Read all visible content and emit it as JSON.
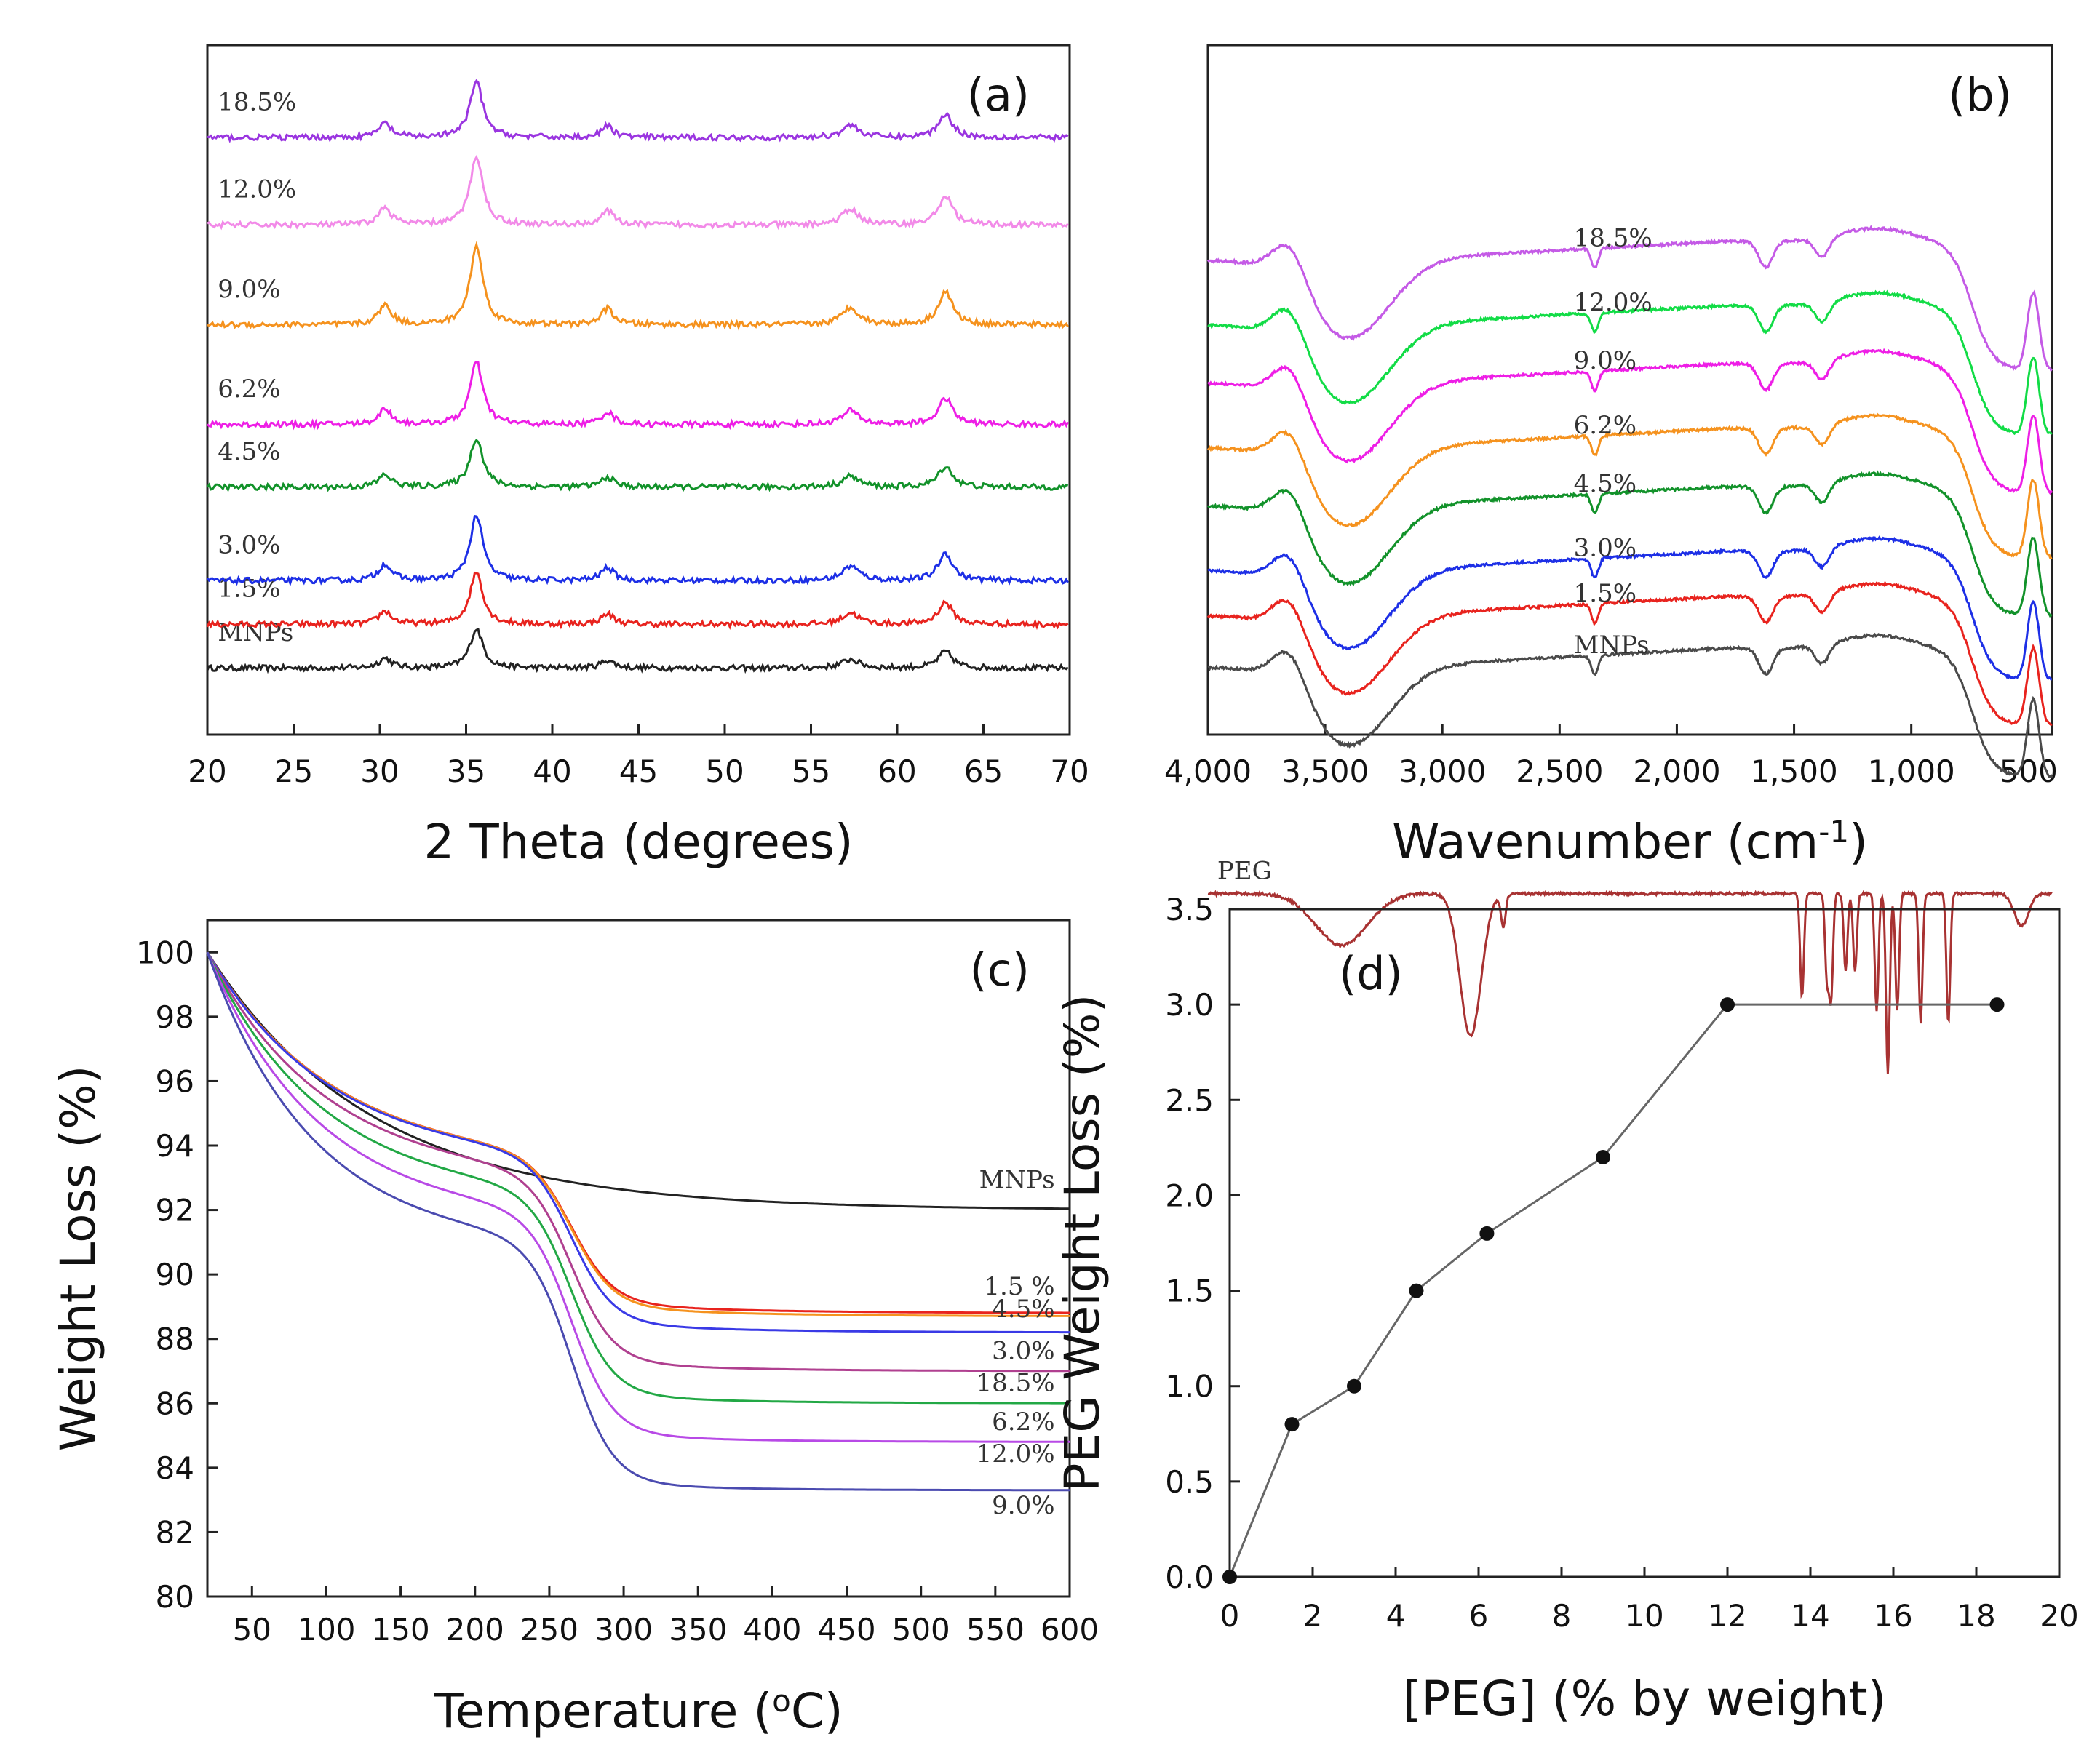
{
  "chart_data": [
    {
      "panel": "(a)",
      "type": "line",
      "xlabel": "2 Theta (degrees)",
      "ylabel": "",
      "xlim": [
        20,
        70
      ],
      "xticks": [
        "20",
        "25",
        "30",
        "35",
        "40",
        "45",
        "50",
        "55",
        "60",
        "65",
        "70"
      ],
      "peaks_2theta": [
        30.3,
        35.6,
        43.2,
        57.3,
        62.8
      ],
      "series": [
        {
          "name": "MNPs",
          "color": "#222222",
          "baseline": 0.06,
          "scale": 0.6
        },
        {
          "name": "1.5%",
          "color": "#e8231e",
          "baseline": 0.13,
          "scale": 0.8
        },
        {
          "name": "3.0%",
          "color": "#1d2fe6",
          "baseline": 0.2,
          "scale": 1.0
        },
        {
          "name": "4.5%",
          "color": "#12922a",
          "baseline": 0.35,
          "scale": 0.75
        },
        {
          "name": "6.2%",
          "color": "#ee1ee6",
          "baseline": 0.45,
          "scale": 0.95
        },
        {
          "name": "9.0%",
          "color": "#f5921e",
          "baseline": 0.61,
          "scale": 1.2
        },
        {
          "name": "12.0%",
          "color": "#f28ae8",
          "baseline": 0.77,
          "scale": 1.05
        },
        {
          "name": "18.5%",
          "color": "#9a35e0",
          "baseline": 0.91,
          "scale": 0.85
        }
      ]
    },
    {
      "panel": "(b)",
      "type": "line",
      "xlabel": "Wavenumber (cm",
      "xlabel_sup": "-1",
      "xlabel_end": ")",
      "ylabel": "",
      "xlim": [
        4000,
        400
      ],
      "xticks": [
        "4,000",
        "3,500",
        "3,000",
        "2,500",
        "2,000",
        "1,500",
        "1,000",
        "500"
      ],
      "series": [
        {
          "name": "PEG",
          "color": "#a83232",
          "offset": 0.0
        },
        {
          "name": "MNPs",
          "color": "#4a4a4a",
          "offset": 0.35
        },
        {
          "name": "1.5%",
          "color": "#e8231e",
          "offset": 0.43
        },
        {
          "name": "3.0%",
          "color": "#1d2fe6",
          "offset": 0.5
        },
        {
          "name": "4.5%",
          "color": "#12922a",
          "offset": 0.6
        },
        {
          "name": "6.2%",
          "color": "#f5921e",
          "offset": 0.69
        },
        {
          "name": "9.0%",
          "color": "#ee1ee6",
          "offset": 0.79
        },
        {
          "name": "12.0%",
          "color": "#12dc46",
          "offset": 0.88
        },
        {
          "name": "18.5%",
          "color": "#c45ae6",
          "offset": 0.98
        }
      ]
    },
    {
      "panel": "(c)",
      "type": "line",
      "xlabel": "Temperature (",
      "xlabel_sup": "o",
      "xlabel_end": "C)",
      "ylabel": "Weight Loss (%)",
      "xlim": [
        20,
        600
      ],
      "ylim": [
        80,
        101
      ],
      "xticks": [
        50,
        100,
        150,
        200,
        250,
        300,
        350,
        400,
        450,
        500,
        550,
        600
      ],
      "yticks": [
        80,
        82,
        84,
        86,
        88,
        90,
        92,
        94,
        96,
        98,
        100
      ],
      "series": [
        {
          "name": "MNPs",
          "color": "#222222",
          "final": 92.0
        },
        {
          "name": "1.5 %",
          "color": "#e8231e",
          "final": 88.8
        },
        {
          "name": "4.5%",
          "color": "#f5921e",
          "final": 88.7
        },
        {
          "name": "3.0%",
          "color": "#3a3ae6",
          "final": 88.2
        },
        {
          "name": "18.5%",
          "color": "#b04090",
          "final": 87.0
        },
        {
          "name": "6.2%",
          "color": "#22a845",
          "final": 86.0
        },
        {
          "name": "12.0%",
          "color": "#b84ae6",
          "final": 84.8
        },
        {
          "name": "9.0%",
          "color": "#4b4bb0",
          "final": 83.3
        }
      ]
    },
    {
      "panel": "(d)",
      "type": "line",
      "xlabel": "[PEG] (% by weight)",
      "ylabel": "PEG Weight Loss (%)",
      "xlim": [
        0,
        20
      ],
      "ylim": [
        0,
        3.5
      ],
      "xticks": [
        0,
        2,
        4,
        6,
        8,
        10,
        12,
        14,
        16,
        18,
        20
      ],
      "yticks": [
        "0.0",
        "0.5",
        "1.0",
        "1.5",
        "2.0",
        "2.5",
        "3.0",
        "3.5"
      ],
      "x": [
        0,
        1.5,
        3.0,
        4.5,
        6.2,
        9.0,
        12.0,
        18.5
      ],
      "y": [
        0.0,
        0.8,
        1.0,
        1.5,
        1.8,
        2.2,
        3.0,
        3.0
      ]
    }
  ]
}
